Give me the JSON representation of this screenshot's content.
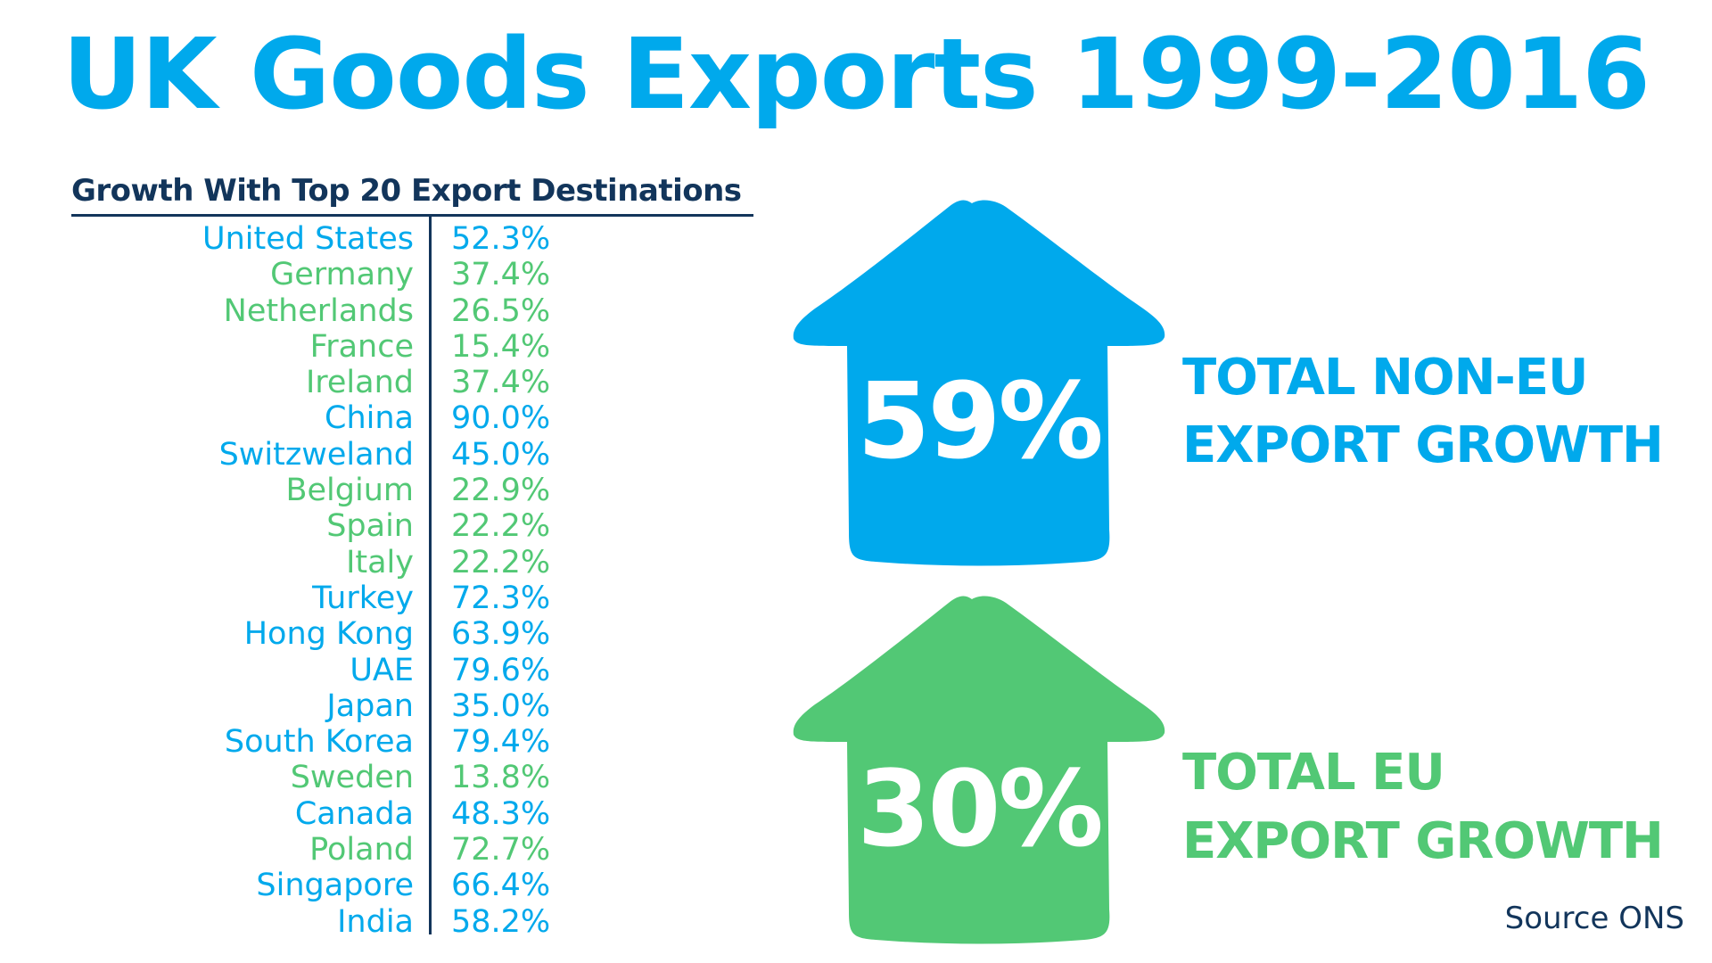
{
  "title": "UK Goods Exports 1999-2016",
  "colors": {
    "blue": "#00a9ec",
    "green": "#52c875",
    "navy": "#12355b"
  },
  "table": {
    "heading": "Growth With Top 20 Export Destinations",
    "rows": [
      {
        "country": "United States",
        "value": "52.3%",
        "group": "non-eu"
      },
      {
        "country": "Germany",
        "value": "37.4%",
        "group": "eu"
      },
      {
        "country": "Netherlands",
        "value": "26.5%",
        "group": "eu"
      },
      {
        "country": "France",
        "value": "15.4%",
        "group": "eu"
      },
      {
        "country": "Ireland",
        "value": "37.4%",
        "group": "eu"
      },
      {
        "country": "China",
        "value": "90.0%",
        "group": "non-eu"
      },
      {
        "country": "Switzweland",
        "value": "45.0%",
        "group": "non-eu"
      },
      {
        "country": "Belgium",
        "value": "22.9%",
        "group": "eu"
      },
      {
        "country": "Spain",
        "value": "22.2%",
        "group": "eu"
      },
      {
        "country": "Italy",
        "value": "22.2%",
        "group": "eu"
      },
      {
        "country": "Turkey",
        "value": "72.3%",
        "group": "non-eu"
      },
      {
        "country": "Hong Kong",
        "value": "63.9%",
        "group": "non-eu"
      },
      {
        "country": "UAE",
        "value": "79.6%",
        "group": "non-eu"
      },
      {
        "country": "Japan",
        "value": "35.0%",
        "group": "non-eu"
      },
      {
        "country": "South Korea",
        "value": "79.4%",
        "group": "non-eu"
      },
      {
        "country": "Sweden",
        "value": "13.8%",
        "group": "eu"
      },
      {
        "country": "Canada",
        "value": "48.3%",
        "group": "non-eu"
      },
      {
        "country": "Poland",
        "value": "72.7%",
        "group": "eu"
      },
      {
        "country": "Singapore",
        "value": "66.4%",
        "group": "non-eu"
      },
      {
        "country": "India",
        "value": "58.2%",
        "group": "non-eu"
      }
    ]
  },
  "non_eu": {
    "percent": "59%",
    "label_line1": "TOTAL NON-EU",
    "label_line2": "EXPORT GROWTH",
    "arrow_icon": "up-arrow-icon"
  },
  "eu": {
    "percent": "30%",
    "label_line1": "TOTAL EU",
    "label_line2": "EXPORT GROWTH",
    "arrow_icon": "up-arrow-icon"
  },
  "source": "Source ONS"
}
